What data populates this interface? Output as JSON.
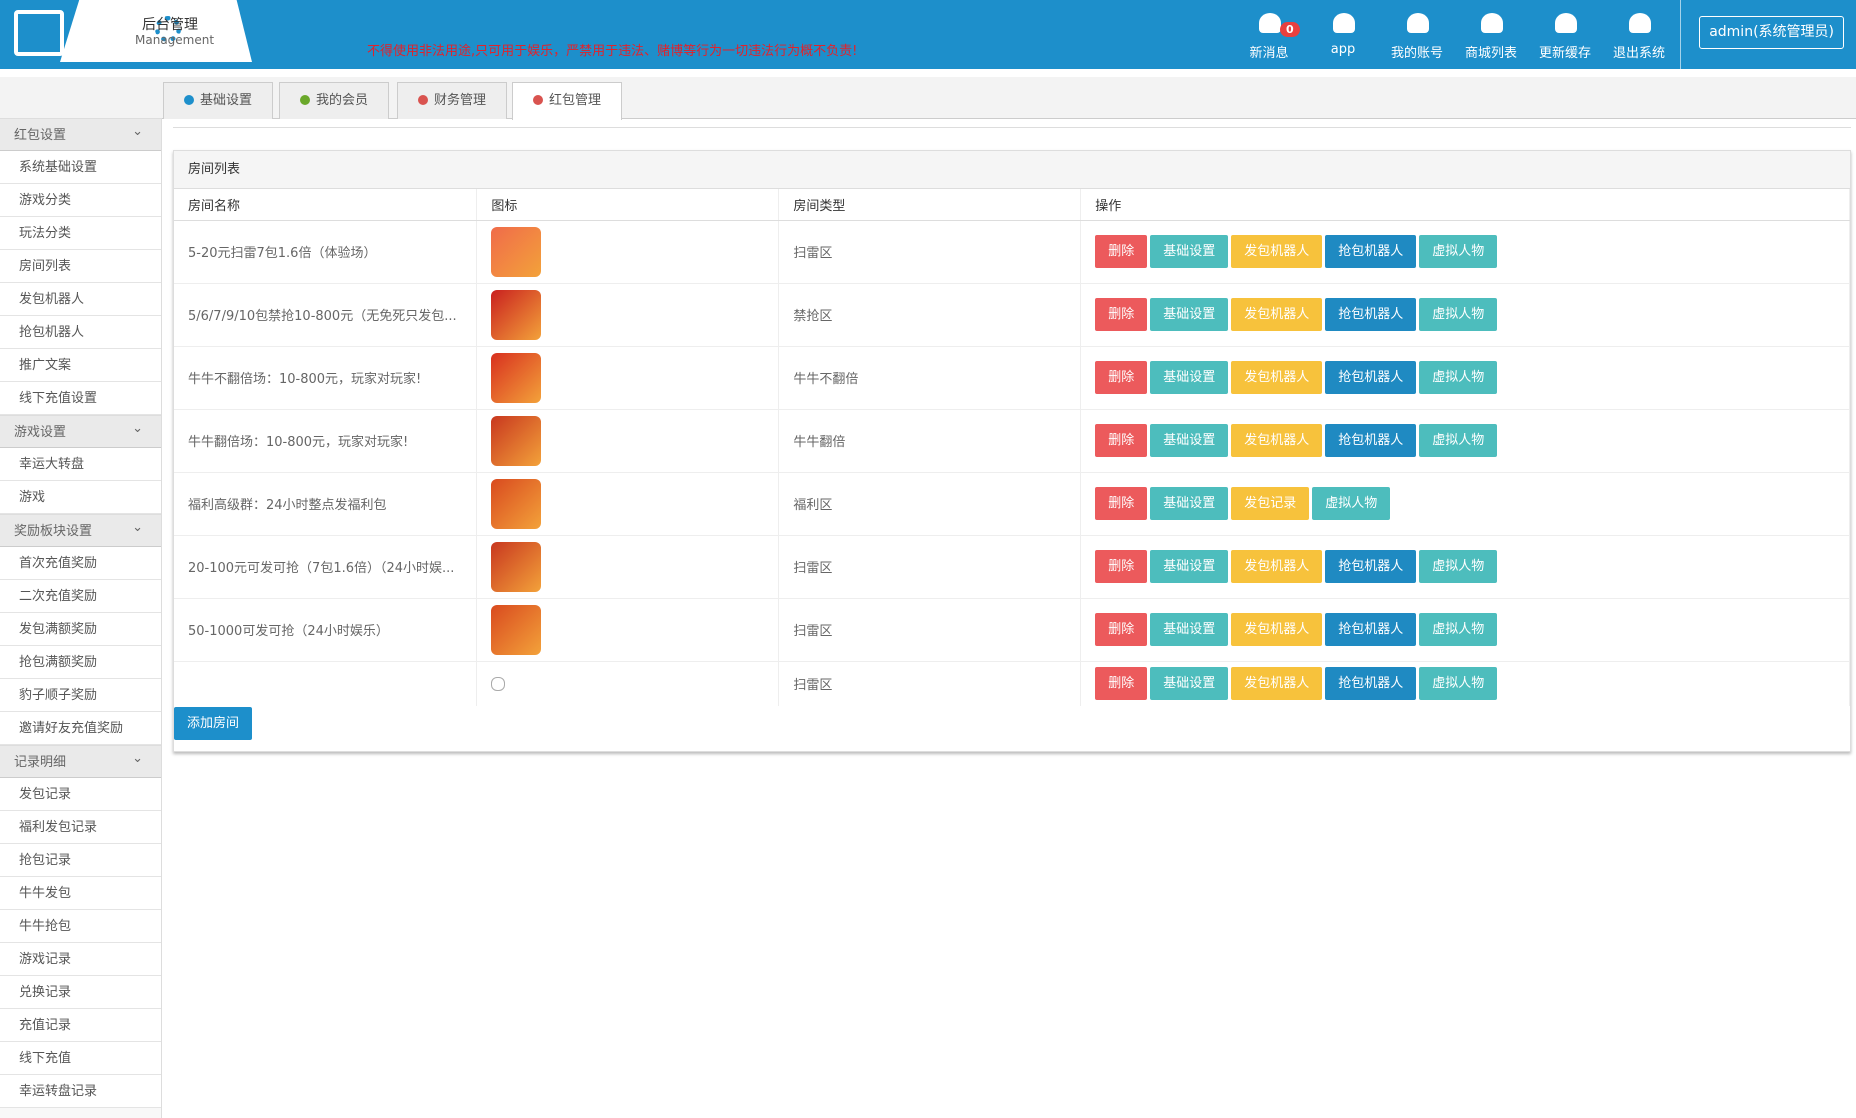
{
  "header": {
    "title": "后台管理",
    "subtitle": "Management",
    "notice": "不得使用非法用途,只可用于娱乐，严禁用于违法、赌博等行为一切违法行为概不负责!",
    "nav": [
      {
        "label": "新消息",
        "badge": "0"
      },
      {
        "label": "app"
      },
      {
        "label": "我的账号"
      },
      {
        "label": "商城列表"
      },
      {
        "label": "更新缓存"
      },
      {
        "label": "退出系统"
      }
    ],
    "user": "admin(系统管理员)"
  },
  "tabs": [
    {
      "label": "基础设置"
    },
    {
      "label": "我的会员"
    },
    {
      "label": "财务管理"
    },
    {
      "label": "红包管理"
    }
  ],
  "sidebar": [
    {
      "title": "红包设置",
      "items": [
        "系统基础设置",
        "游戏分类",
        "玩法分类",
        "房间列表",
        "发包机器人",
        "抢包机器人",
        "推广文案",
        "线下充值设置"
      ]
    },
    {
      "title": "游戏设置",
      "items": [
        "幸运大转盘",
        "游戏"
      ]
    },
    {
      "title": "奖励板块设置",
      "items": [
        "首次充值奖励",
        "二次充值奖励",
        "发包满额奖励",
        "抢包满额奖励",
        "豹子顺子奖励",
        "邀请好友充值奖励"
      ]
    },
    {
      "title": "记录明细",
      "items": [
        "发包记录",
        "福利发包记录",
        "抢包记录",
        "牛牛发包",
        "牛牛抢包",
        "游戏记录",
        "兑换记录",
        "充值记录",
        "线下充值",
        "幸运转盘记录"
      ]
    }
  ],
  "panel": {
    "title": "房间列表",
    "columns": [
      "房间名称",
      "图标",
      "房间类型",
      "操作"
    ],
    "rows": [
      {
        "name": "5-20元扫雷7包1.6倍（体验场）",
        "type": "扫雷区",
        "actions": [
          "删除",
          "基础设置",
          "发包机器人",
          "抢包机器人",
          "虚拟人物"
        ]
      },
      {
        "name": "5/6/7/9/10包禁抢10-800元（无免死只发包...",
        "type": "禁抢区",
        "actions": [
          "删除",
          "基础设置",
          "发包机器人",
          "抢包机器人",
          "虚拟人物"
        ]
      },
      {
        "name": "牛牛不翻倍场：10-800元，玩家对玩家!",
        "type": "牛牛不翻倍",
        "actions": [
          "删除",
          "基础设置",
          "发包机器人",
          "抢包机器人",
          "虚拟人物"
        ]
      },
      {
        "name": "牛牛翻倍场：10-800元，玩家对玩家!",
        "type": "牛牛翻倍",
        "actions": [
          "删除",
          "基础设置",
          "发包机器人",
          "抢包机器人",
          "虚拟人物"
        ]
      },
      {
        "name": "福利高级群：24小时整点发福利包",
        "type": "福利区",
        "actions": [
          "删除",
          "基础设置",
          "发包记录",
          "虚拟人物"
        ]
      },
      {
        "name": "20-100元可发可抢（7包1.6倍）（24小时娱...",
        "type": "扫雷区",
        "actions": [
          "删除",
          "基础设置",
          "发包机器人",
          "抢包机器人",
          "虚拟人物"
        ]
      },
      {
        "name": "50-1000可发可抢（24小时娱乐）",
        "type": "扫雷区",
        "actions": [
          "删除",
          "基础设置",
          "发包机器人",
          "抢包机器人",
          "虚拟人物"
        ]
      },
      {
        "name": "",
        "type": "扫雷区",
        "actions": [
          "删除",
          "基础设置",
          "发包机器人",
          "抢包机器人",
          "虚拟人物"
        ]
      }
    ],
    "add_button": "添加房间"
  }
}
